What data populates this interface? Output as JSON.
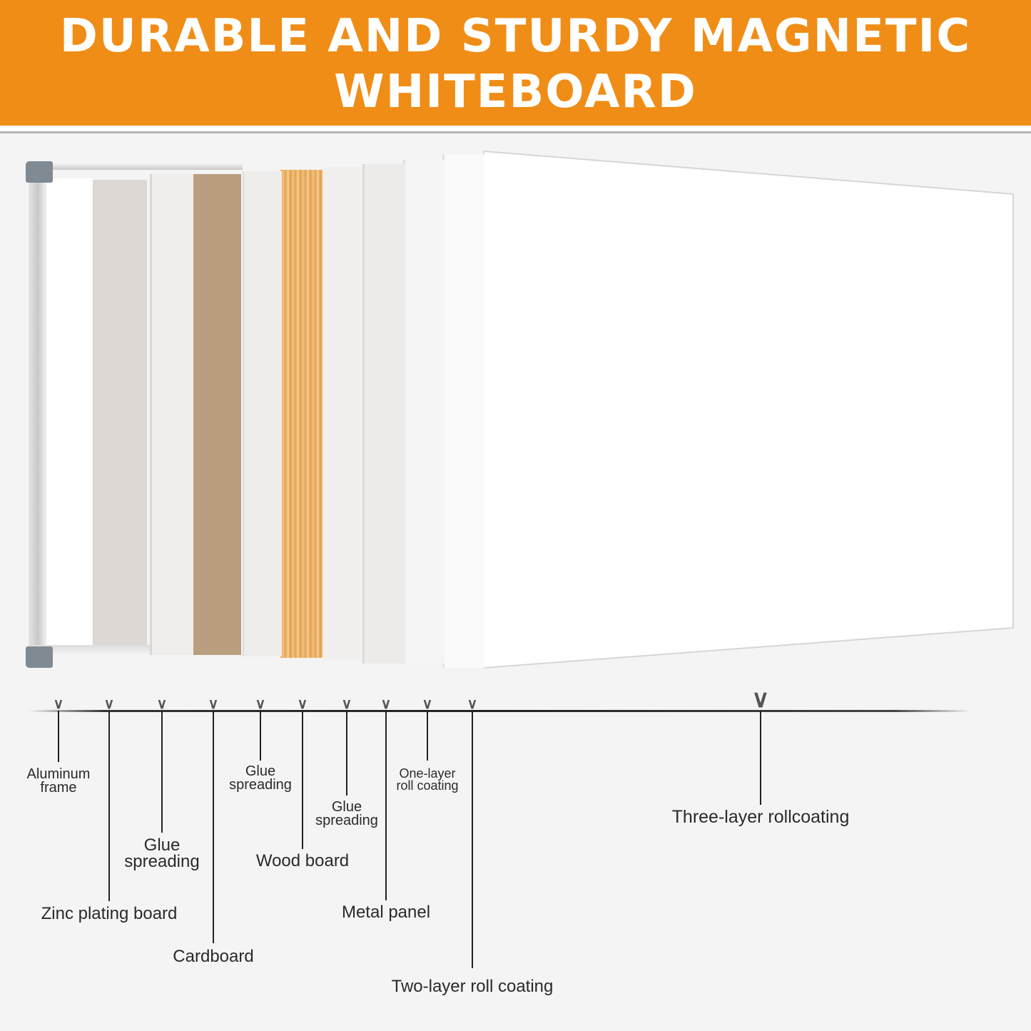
{
  "header": {
    "title_line1": "DURABLE AND STURDY MAGNETIC",
    "title_line2": "WHITEBOARD",
    "background": "#f08d16"
  },
  "layers": [
    {
      "label": "Aluminum frame",
      "line1": "Aluminum",
      "line2": "frame"
    },
    {
      "label": "Zinc plating board"
    },
    {
      "label": "Glue spreading",
      "line1": "Glue",
      "line2": "spreading"
    },
    {
      "label": "Cardboard"
    },
    {
      "label": "Glue spreading",
      "line1": "Glue",
      "line2": "spreading"
    },
    {
      "label": "Wood board"
    },
    {
      "label": "Glue spreading",
      "line1": "Glue",
      "line2": "spreading"
    },
    {
      "label": "Metal panel"
    },
    {
      "label": "One-layer roll coating",
      "line1": "One-layer",
      "line2": "roll coating"
    },
    {
      "label": "Two-layer roll coating"
    },
    {
      "label": "Three-layer rollcoating"
    }
  ]
}
